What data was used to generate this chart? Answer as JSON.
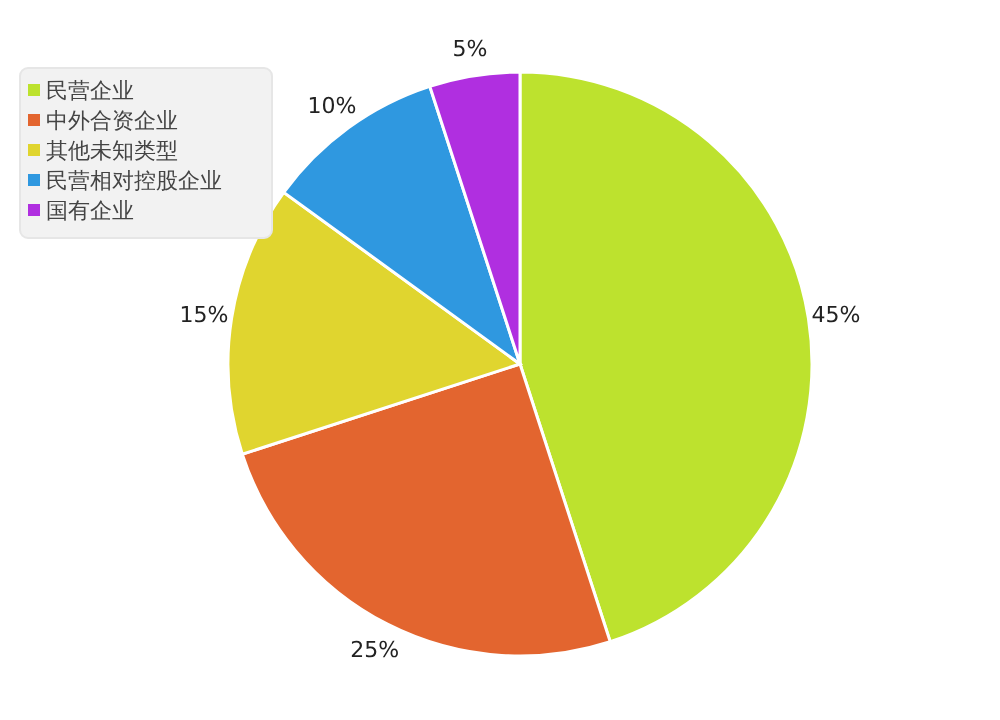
{
  "chart_data": {
    "type": "pie",
    "categories": [
      "民营企业",
      "中外合资企业",
      "其他未知类型",
      "民营相对控股企业",
      "国有企业"
    ],
    "values": [
      45,
      25,
      15,
      10,
      5
    ],
    "colors": [
      "#bde22e",
      "#e3652f",
      "#e0d52f",
      "#2f98e0",
      "#b02fe0"
    ],
    "value_labels": [
      "45%",
      "25%",
      "15%",
      "10%",
      "5%"
    ],
    "legend": "top left"
  }
}
